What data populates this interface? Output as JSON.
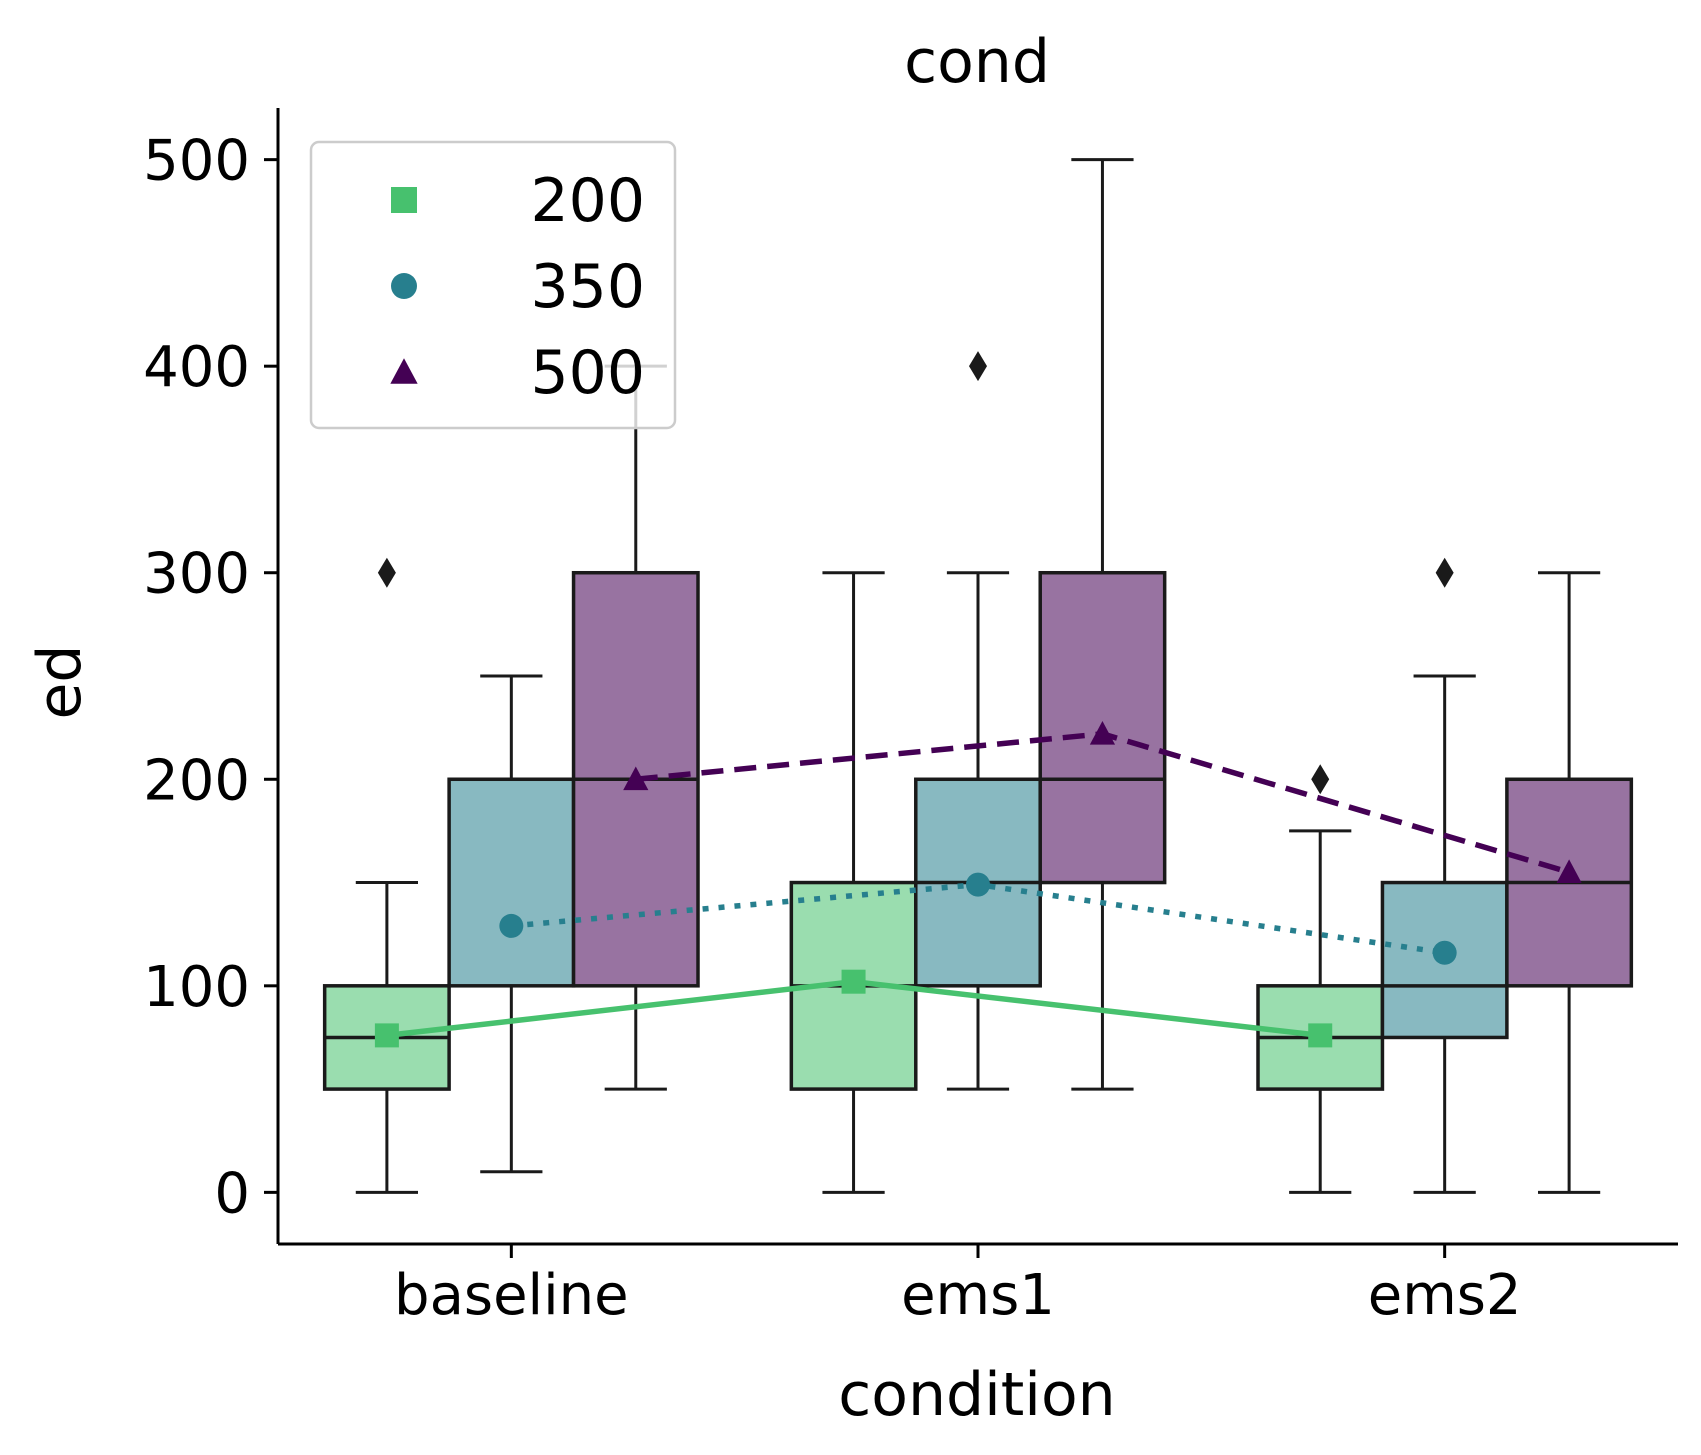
{
  "chart_data": {
    "type": "box",
    "title": "cond",
    "xlabel": "condition",
    "ylabel": "ed",
    "categories": [
      "baseline",
      "ems1",
      "ems2"
    ],
    "ylim": [
      -25,
      525
    ],
    "yticks": [
      0,
      100,
      200,
      300,
      400,
      500
    ],
    "legend": {
      "placement": "top-left"
    },
    "series": [
      {
        "name": "200",
        "color": "#47c16e",
        "marker": "square",
        "linestyle": "solid",
        "means": [
          76,
          102,
          76
        ],
        "boxes": [
          {
            "whislo": 0,
            "q1": 50,
            "med": 75,
            "q3": 100,
            "whishi": 150,
            "fliers": [
              300
            ]
          },
          {
            "whislo": 0,
            "q1": 50,
            "med": 100,
            "q3": 150,
            "whishi": 300,
            "fliers": []
          },
          {
            "whislo": 0,
            "q1": 50,
            "med": 75,
            "q3": 100,
            "whishi": 175,
            "fliers": [
              200
            ]
          }
        ]
      },
      {
        "name": "350",
        "color": "#277f8e",
        "marker": "circle",
        "linestyle": "dotted",
        "means": [
          129,
          149,
          116
        ],
        "boxes": [
          {
            "whislo": 10,
            "q1": 100,
            "med": 200,
            "q3": 200,
            "whishi": 250,
            "fliers": []
          },
          {
            "whislo": 50,
            "q1": 100,
            "med": 150,
            "q3": 200,
            "whishi": 300,
            "fliers": [
              400
            ]
          },
          {
            "whislo": 0,
            "q1": 75,
            "med": 100,
            "q3": 150,
            "whishi": 250,
            "fliers": [
              300
            ]
          }
        ]
      },
      {
        "name": "500",
        "color": "#440154",
        "marker": "triangle",
        "linestyle": "dashed",
        "means": [
          200,
          222,
          155
        ],
        "boxes": [
          {
            "whislo": 50,
            "q1": 100,
            "med": 200,
            "q3": 300,
            "whishi": 400,
            "fliers": []
          },
          {
            "whislo": 50,
            "q1": 150,
            "med": 200,
            "q3": 300,
            "whishi": 500,
            "fliers": []
          },
          {
            "whislo": 0,
            "q1": 100,
            "med": 150,
            "q3": 200,
            "whishi": 300,
            "fliers": []
          }
        ]
      }
    ]
  }
}
